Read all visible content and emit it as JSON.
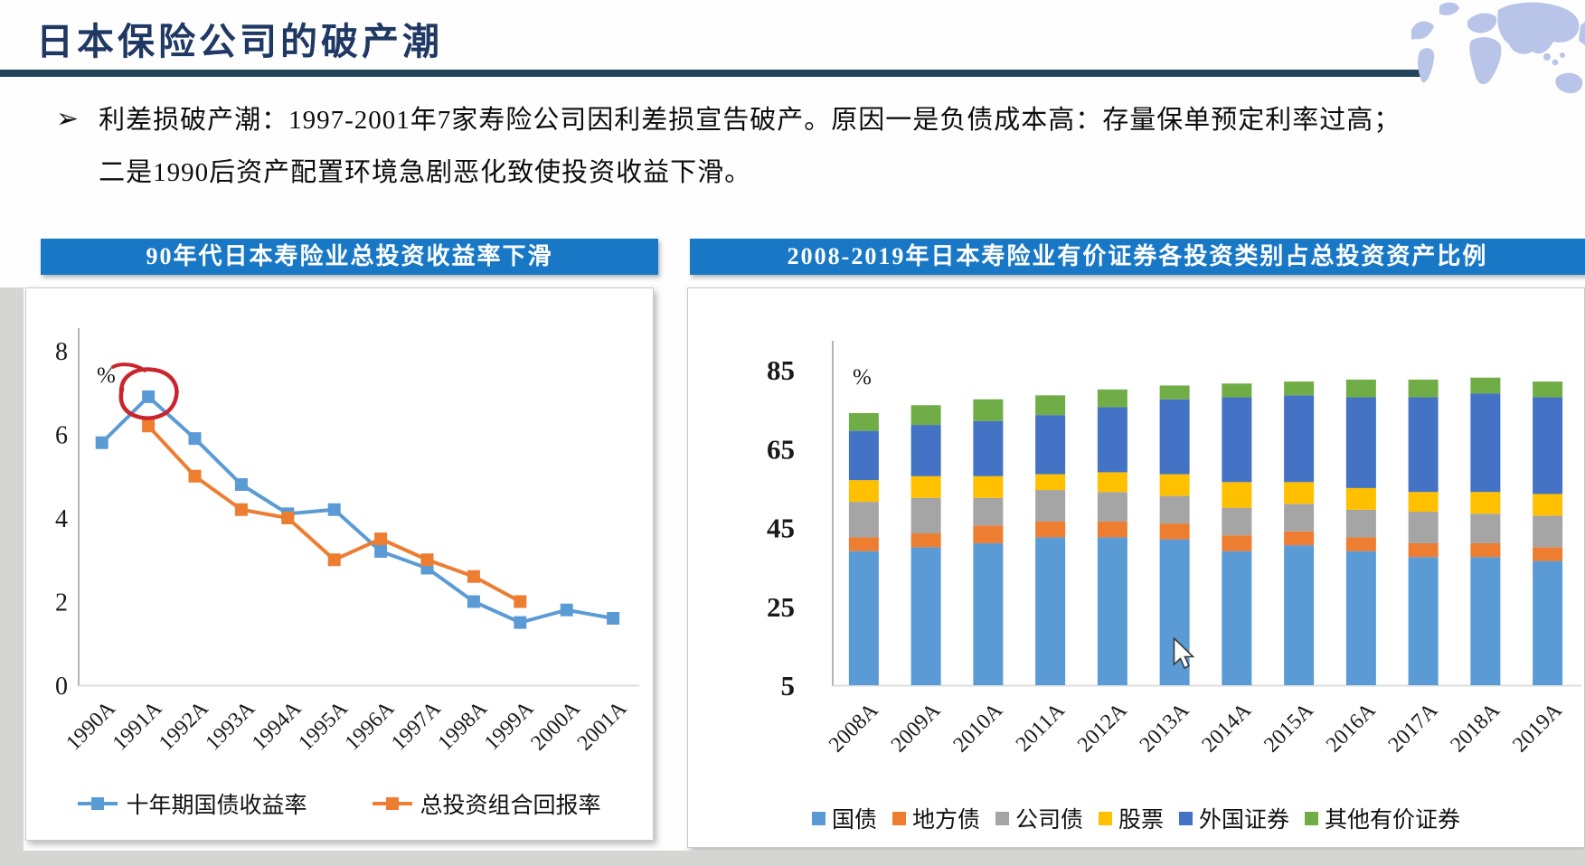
{
  "page": {
    "title": "日本保险公司的破产潮",
    "bullet": {
      "marker": "➢",
      "lines": [
        "利差损破产潮：1997-2001年7家寿险公司因利差损宣告破产。原因一是负债成本高：存量保单预定利率过高；",
        "二是1990后资产配置环境急剧恶化致使投资收益下滑。"
      ]
    }
  },
  "colors": {
    "header_bar": "#1878C6",
    "title_navy": "#1F3864",
    "rule_dark": "#20445A",
    "map_lavender": "#B9C4E9",
    "page_edge_gray": "#D5D5D3",
    "annotation_red": "#C9252D"
  },
  "chart_data": [
    {
      "type": "line",
      "title": "90年代日本寿险业总投资收益率下滑",
      "unit": "%",
      "categories": [
        "1990A",
        "1991A",
        "1992A",
        "1993A",
        "1994A",
        "1995A",
        "1996A",
        "1997A",
        "1998A",
        "1999A",
        "2000A",
        "2001A"
      ],
      "series": [
        {
          "name": "十年期国债收益率",
          "color": "#5B9BD5",
          "values": [
            5.8,
            6.9,
            5.9,
            4.8,
            4.1,
            4.2,
            3.2,
            2.8,
            2.0,
            1.5,
            1.8,
            1.6
          ]
        },
        {
          "name": "总投资组合回报率",
          "color": "#ED7D31",
          "values": [
            null,
            6.2,
            5.0,
            4.2,
            4.0,
            3.0,
            3.5,
            3.0,
            2.6,
            2.0,
            null,
            null
          ]
        }
      ],
      "y_ticks": [
        8,
        6,
        4,
        2,
        0
      ],
      "ylim": [
        0,
        8
      ],
      "grid": false,
      "legend_position": "bottom",
      "annotation": {
        "type": "hand-drawn-circle",
        "series": 0,
        "index": 1,
        "color": "#C9252D"
      }
    },
    {
      "type": "bar",
      "subtype": "stacked",
      "title": "2008-2019年日本寿险业有价证券各投资类别占总投资资产比例",
      "unit": "%",
      "categories": [
        "2008A",
        "2009A",
        "2010A",
        "2011A",
        "2012A",
        "2013A",
        "2014A",
        "2015A",
        "2016A",
        "2017A",
        "2018A",
        "2019A"
      ],
      "series": [
        {
          "name": "国债",
          "color": "#5B9BD5",
          "values": [
            39,
            40,
            41,
            42.5,
            42.5,
            42,
            39,
            40.5,
            39,
            37.5,
            37.5,
            36.5
          ]
        },
        {
          "name": "地方债",
          "color": "#ED7D31",
          "values": [
            3.5,
            3.5,
            4.5,
            4,
            4,
            4,
            4,
            3.5,
            3.5,
            3.5,
            3.5,
            3.5
          ]
        },
        {
          "name": "公司债",
          "color": "#A5A5A5",
          "values": [
            9,
            9,
            7,
            8,
            7.5,
            7,
            7,
            7,
            7,
            8,
            7.5,
            8
          ]
        },
        {
          "name": "股票",
          "color": "#FFC000",
          "values": [
            5.5,
            5.5,
            5.5,
            4,
            5,
            5.5,
            6.5,
            5.5,
            5.5,
            5,
            5.5,
            5.5
          ]
        },
        {
          "name": "外国证券",
          "color": "#4472C4",
          "values": [
            12.5,
            13,
            14,
            15,
            16.5,
            19,
            21.5,
            22,
            23,
            24,
            25,
            24.5
          ]
        },
        {
          "name": "其他有价证券",
          "color": "#70AD47",
          "values": [
            4.5,
            5,
            5.5,
            5,
            4.5,
            3.5,
            3.5,
            3.5,
            4.5,
            4.5,
            4,
            4
          ]
        }
      ],
      "y_ticks": [
        85,
        65,
        45,
        25,
        5
      ],
      "ylim": [
        5,
        85
      ],
      "grid": false,
      "legend_position": "bottom"
    }
  ]
}
